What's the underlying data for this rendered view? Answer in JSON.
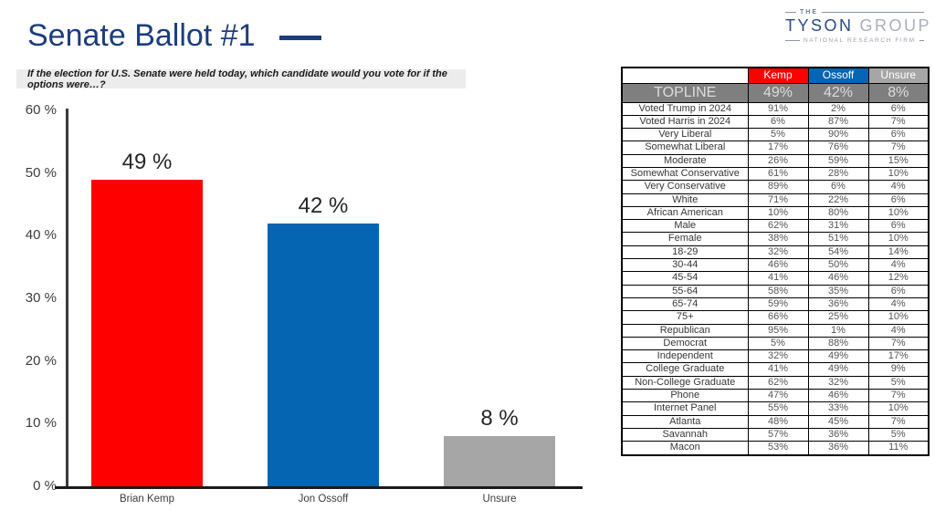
{
  "page": {
    "title": "Senate Ballot #1",
    "question": "If the election for U.S. Senate were held today, which candidate would you vote for if the options were…?"
  },
  "logo": {
    "the": "THE",
    "tyson": "TYSON",
    "group": "GROUP",
    "tagline": "NATIONAL RESEARCH FIRM"
  },
  "colors": {
    "kemp_red": "#ff0000",
    "ossoff_blue": "#0665b2",
    "unsure_gray": "#a6a6a6",
    "title_blue": "#1d3d7d",
    "topline_bg": "#7f7f7f"
  },
  "chart_data": {
    "type": "bar",
    "title": "Senate Ballot #1",
    "categories": [
      "Brian Kemp",
      "Jon Ossoff",
      "Unsure"
    ],
    "values": [
      49,
      42,
      8
    ],
    "bar_labels": [
      "49 %",
      "42 %",
      "8 %"
    ],
    "bar_colors": [
      "#ff0000",
      "#0665b2",
      "#a6a6a6"
    ],
    "xlabel": "",
    "ylabel": "",
    "ylim": [
      0,
      60
    ],
    "yticks": [
      0,
      10,
      20,
      30,
      40,
      50,
      60
    ],
    "ytick_labels": [
      "0 %",
      "10 %",
      "20 %",
      "30 %",
      "40 %",
      "50 %",
      "60 %"
    ],
    "grid": false,
    "legend": false
  },
  "table": {
    "columns": [
      "",
      "Kemp",
      "Ossoff",
      "Unsure"
    ],
    "topline": {
      "label": "TOPLINE",
      "kemp": "49%",
      "ossoff": "42%",
      "unsure": "8%"
    },
    "rows": [
      [
        "Voted Trump in 2024",
        "91%",
        "2%",
        "6%"
      ],
      [
        "Voted Harris in 2024",
        "6%",
        "87%",
        "7%"
      ],
      [
        "Very Liberal",
        "5%",
        "90%",
        "6%"
      ],
      [
        "Somewhat Liberal",
        "17%",
        "76%",
        "7%"
      ],
      [
        "Moderate",
        "26%",
        "59%",
        "15%"
      ],
      [
        "Somewhat Conservative",
        "61%",
        "28%",
        "10%"
      ],
      [
        "Very Conservative",
        "89%",
        "6%",
        "4%"
      ],
      [
        "White",
        "71%",
        "22%",
        "6%"
      ],
      [
        "African American",
        "10%",
        "80%",
        "10%"
      ],
      [
        "Male",
        "62%",
        "31%",
        "6%"
      ],
      [
        "Female",
        "38%",
        "51%",
        "10%"
      ],
      [
        "18-29",
        "32%",
        "54%",
        "14%"
      ],
      [
        "30-44",
        "46%",
        "50%",
        "4%"
      ],
      [
        "45-54",
        "41%",
        "46%",
        "12%"
      ],
      [
        "55-64",
        "58%",
        "35%",
        "6%"
      ],
      [
        "65-74",
        "59%",
        "36%",
        "4%"
      ],
      [
        "75+",
        "66%",
        "25%",
        "10%"
      ],
      [
        "Republican",
        "95%",
        "1%",
        "4%"
      ],
      [
        "Democrat",
        "5%",
        "88%",
        "7%"
      ],
      [
        "Independent",
        "32%",
        "49%",
        "17%"
      ],
      [
        "College Graduate",
        "41%",
        "49%",
        "9%"
      ],
      [
        "Non-College Graduate",
        "62%",
        "32%",
        "5%"
      ],
      [
        "Phone",
        "47%",
        "46%",
        "7%"
      ],
      [
        "Internet Panel",
        "55%",
        "33%",
        "10%"
      ],
      [
        "Atlanta",
        "48%",
        "45%",
        "7%"
      ],
      [
        "Savannah",
        "57%",
        "36%",
        "5%"
      ],
      [
        "Macon",
        "53%",
        "36%",
        "11%"
      ]
    ]
  }
}
